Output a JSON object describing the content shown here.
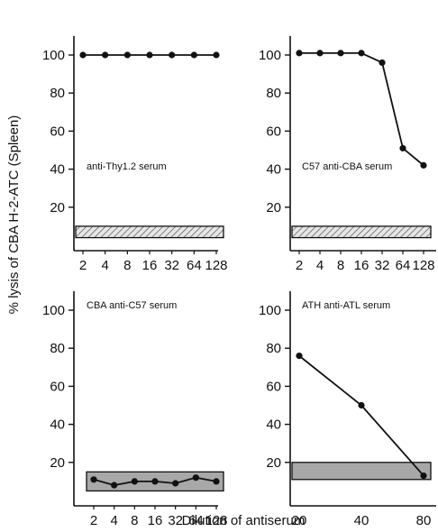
{
  "figure": {
    "ylabel": "% lysis of CBA  H-2-ATC (Spleen)",
    "xlabel": "Dilution of antiserum"
  },
  "colors": {
    "ink": "#111111",
    "hatch_fill": "#cfcfcf",
    "band_fill": "#a8a8a8"
  },
  "chart_data": [
    {
      "type": "line",
      "panel": "top-left",
      "annotation": "anti-Thy1.2 serum",
      "categories": [
        "2",
        "4",
        "8",
        "16",
        "32",
        "64",
        "128"
      ],
      "x": [
        2,
        4,
        8,
        16,
        32,
        64,
        128
      ],
      "values": [
        100,
        100,
        100,
        100,
        100,
        100,
        100
      ],
      "ylim": [
        0,
        110
      ],
      "yticks": [
        20,
        40,
        60,
        80,
        100
      ],
      "control_band": {
        "range": [
          4,
          10
        ],
        "style": "hatched"
      }
    },
    {
      "type": "line",
      "panel": "top-right",
      "annotation": "C57 anti-CBA serum",
      "categories": [
        "2",
        "4",
        "8",
        "16",
        "32",
        "64",
        "128"
      ],
      "x": [
        2,
        4,
        8,
        16,
        32,
        64,
        128
      ],
      "values": [
        101,
        101,
        101,
        101,
        96,
        51,
        42
      ],
      "ylim": [
        0,
        110
      ],
      "yticks": [
        20,
        40,
        60,
        80,
        100
      ],
      "control_band": {
        "range": [
          4,
          10
        ],
        "style": "hatched"
      }
    },
    {
      "type": "line",
      "panel": "bottom-left",
      "annotation": "CBA anti-C57 serum",
      "categories": [
        "2",
        "4",
        "8",
        "16",
        "32",
        "64",
        "128"
      ],
      "x": [
        2,
        4,
        8,
        16,
        32,
        64,
        128
      ],
      "values": [
        11,
        8,
        10,
        10,
        9,
        12,
        10
      ],
      "ylim": [
        0,
        110
      ],
      "yticks": [
        20,
        40,
        60,
        80,
        100
      ],
      "control_band": {
        "range": [
          5,
          15
        ],
        "style": "solid"
      }
    },
    {
      "type": "line",
      "panel": "bottom-right",
      "annotation": "ATH anti-ATL serum",
      "categories": [
        "20",
        "40",
        "80"
      ],
      "x": [
        20,
        40,
        80
      ],
      "values": [
        76,
        50,
        13
      ],
      "ylim": [
        0,
        110
      ],
      "yticks": [
        20,
        40,
        60,
        80,
        100
      ],
      "control_band": {
        "range": [
          11,
          20
        ],
        "style": "solid"
      }
    }
  ]
}
